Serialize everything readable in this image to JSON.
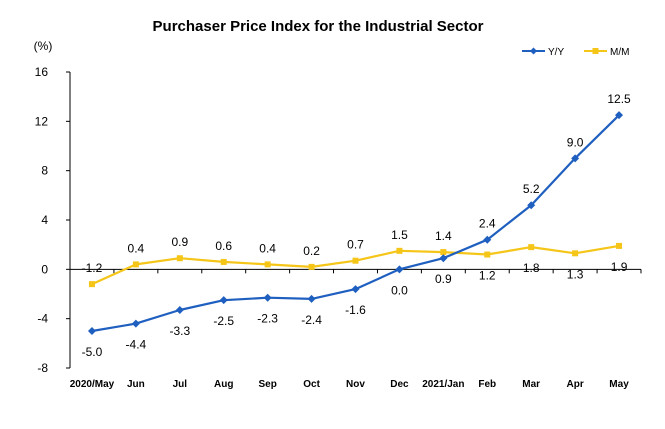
{
  "chart_data": {
    "type": "line",
    "title": "Purchaser Price Index for the Industrial  Sector",
    "unit_label": "(%)",
    "categories": [
      "2020/May",
      "Jun",
      "Jul",
      "Aug",
      "Sep",
      "Oct",
      "Nov",
      "Dec",
      "2021/Jan",
      "Feb",
      "Mar",
      "Apr",
      "May"
    ],
    "ylim": [
      -8,
      16
    ],
    "yticks": [
      -8,
      -4,
      0,
      4,
      8,
      12,
      16
    ],
    "ytick_labels": [
      "-8",
      "-4",
      "0",
      "4",
      "8",
      "12",
      "16"
    ],
    "grid": false,
    "legend_position": "top-right",
    "series": [
      {
        "name": "Y/Y",
        "color": "#1f5fbf",
        "marker": "diamond",
        "values": [
          -5.0,
          -4.4,
          -3.3,
          -2.5,
          -2.3,
          -2.4,
          -1.6,
          0.0,
          0.9,
          2.4,
          5.2,
          9.0,
          12.5
        ],
        "labels": [
          "-5.0",
          "-4.4",
          "-3.3",
          "-2.5",
          "-2.3",
          "-2.4",
          "-1.6",
          "0.0",
          "0.9",
          "2.4",
          "5.2",
          "9.0",
          "12.5"
        ],
        "label_side": [
          "below",
          "below",
          "below",
          "below",
          "below",
          "below",
          "below",
          "below",
          "below",
          "above",
          "above",
          "above",
          "above"
        ]
      },
      {
        "name": "M/M",
        "color": "#f5c518",
        "marker": "square",
        "values": [
          -1.2,
          0.4,
          0.9,
          0.6,
          0.4,
          0.2,
          0.7,
          1.5,
          1.4,
          1.2,
          1.8,
          1.3,
          1.9
        ],
        "labels": [
          "-1.2",
          "0.4",
          "0.9",
          "0.6",
          "0.4",
          "0.2",
          "0.7",
          "1.5",
          "1.4",
          "1.2",
          "1.8",
          "1.3",
          "1.9"
        ],
        "label_side": [
          "above",
          "above",
          "above",
          "above",
          "above",
          "above",
          "above",
          "above",
          "above",
          "below",
          "below",
          "below",
          "below"
        ]
      }
    ]
  }
}
